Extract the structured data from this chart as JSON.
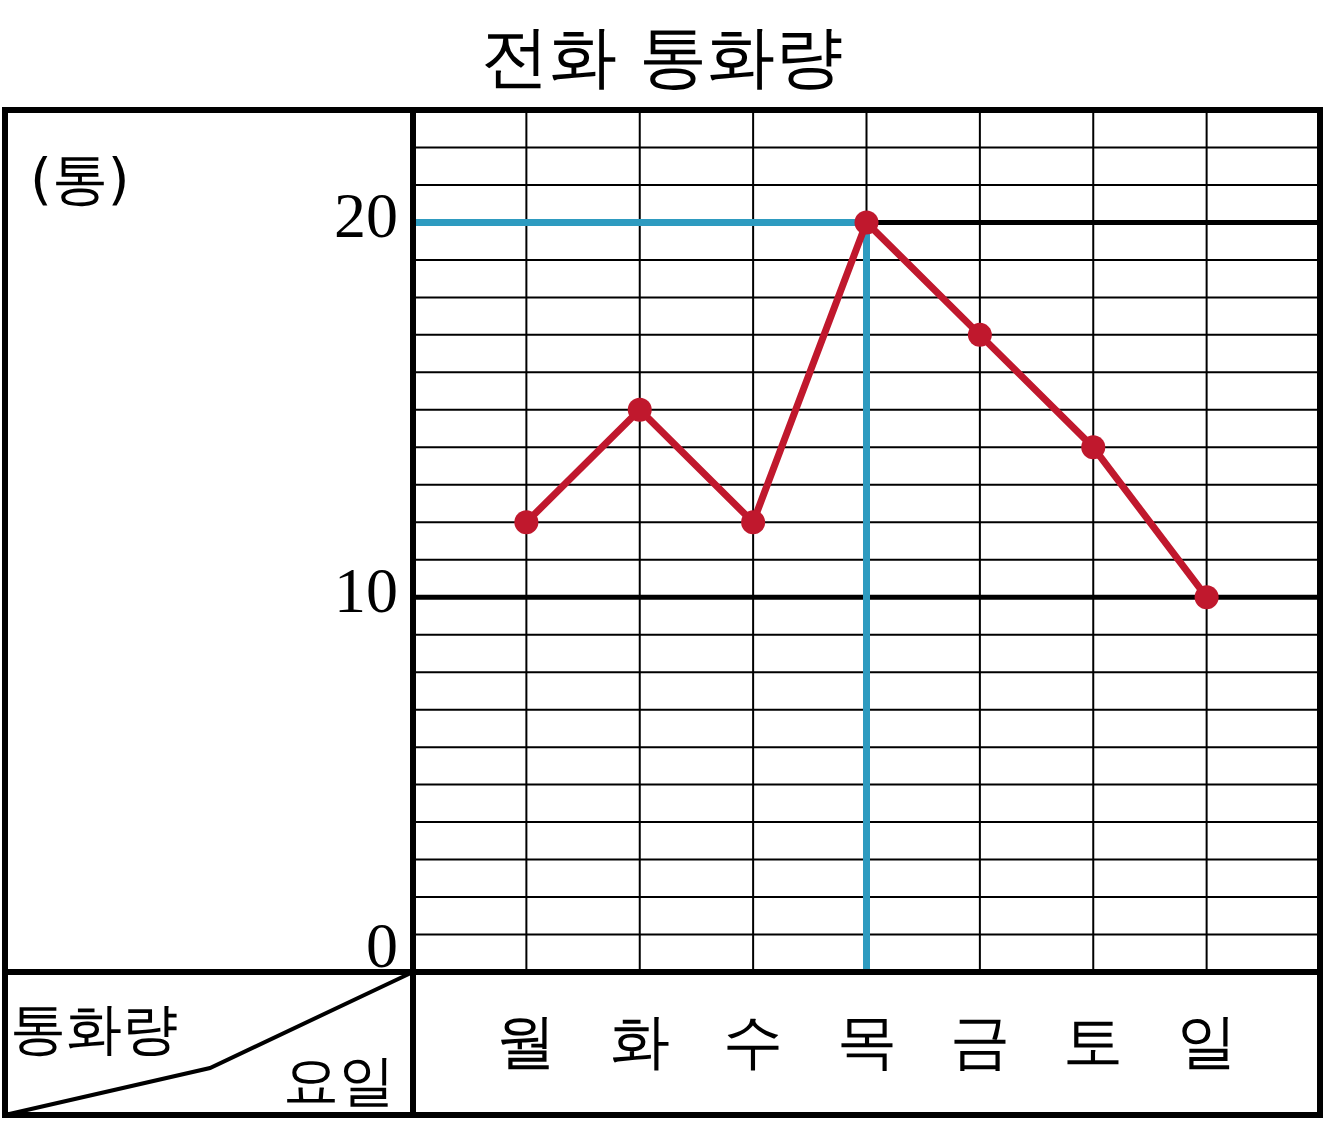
{
  "chart_data": {
    "type": "line",
    "title": "전화 통화량",
    "ylabel": "(통)",
    "xlabel": "요일",
    "annotations": [
      "통화량"
    ],
    "categories": [
      "월",
      "화",
      "수",
      "목",
      "금",
      "토",
      "일"
    ],
    "series": [
      {
        "color": "#c0182d",
        "values": [
          12,
          15,
          12,
          20,
          17,
          14,
          10
        ]
      }
    ],
    "ylim": [
      0,
      23
    ],
    "yticks": [
      0,
      10,
      20
    ],
    "grid": true,
    "marker": "circle",
    "line_style": "solid",
    "ref_lines": [
      {
        "axis": "y",
        "value": 20,
        "color": "#2e9bc0"
      },
      {
        "axis": "x",
        "value": "목",
        "color": "#2e9bc0"
      }
    ]
  }
}
